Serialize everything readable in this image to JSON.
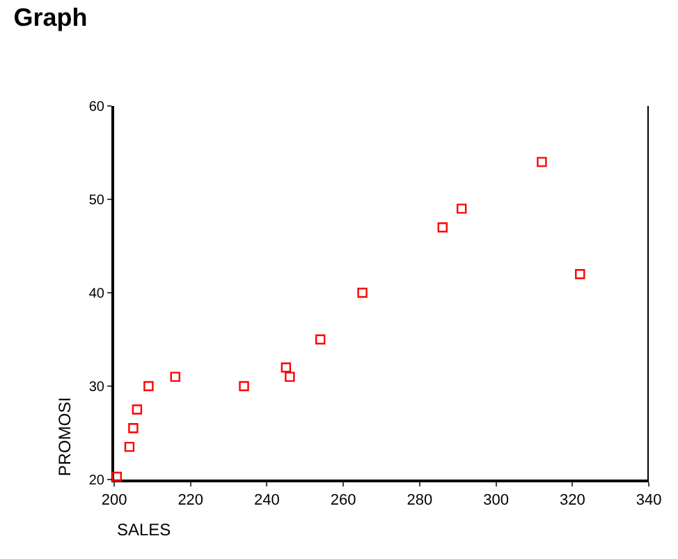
{
  "chart_data": {
    "type": "scatter",
    "title": "Graph",
    "xlabel": "SALES",
    "ylabel": "PROMOSI",
    "x": [
      200.7,
      204,
      205,
      206,
      209,
      216,
      234,
      245,
      246,
      254,
      265,
      286,
      291,
      312,
      322
    ],
    "values": [
      20.3,
      23.5,
      25.5,
      27.5,
      30,
      31,
      30,
      32,
      31,
      35,
      40,
      47,
      49,
      54,
      42
    ],
    "color": "#ff0000",
    "marker": "square",
    "xlim": [
      200,
      340
    ],
    "xticks": [
      200,
      220,
      240,
      260,
      280,
      300,
      320,
      340
    ],
    "ylim": [
      20,
      60
    ],
    "yticks": [
      20,
      30,
      40,
      50,
      60
    ]
  }
}
